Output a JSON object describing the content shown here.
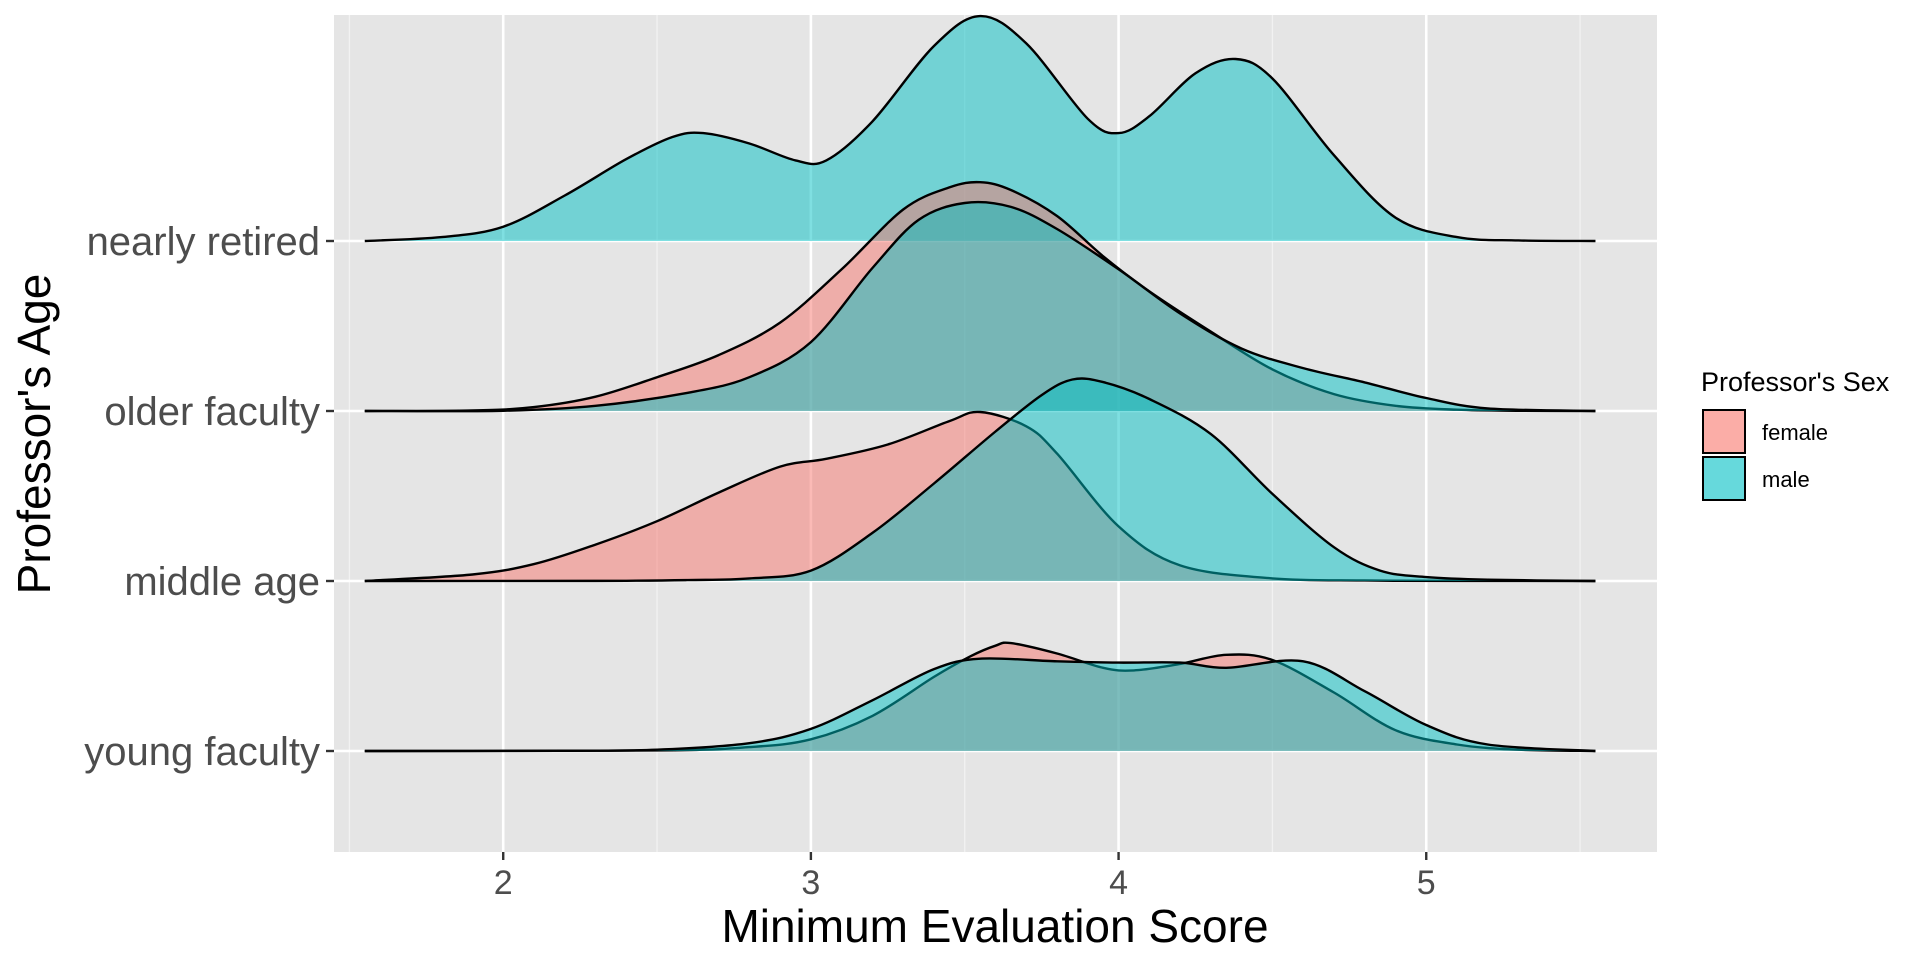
{
  "chart_data": {
    "type": "ridgeline",
    "xlabel": "Minimum Evaluation Score",
    "ylabel": "Professor's Age",
    "xlim": [
      1.45,
      5.75
    ],
    "x_ticks": [
      2,
      3,
      4,
      5
    ],
    "x_tick_labels": [
      "2",
      "3",
      "4",
      "5"
    ],
    "categories": [
      "young faculty",
      "middle age",
      "older faculty",
      "nearly retired"
    ],
    "density_x_range": [
      1.55,
      5.55
    ],
    "grid": true,
    "legend": {
      "title": "Professor's Sex",
      "position": "right",
      "entries": [
        {
          "label": "female",
          "color": "#F8766D"
        },
        {
          "label": "male",
          "color": "#00BFC4"
        }
      ]
    },
    "series": [
      {
        "group": "young faculty",
        "sex": "female",
        "color": "#F8766D",
        "x": [
          1.55,
          2.5,
          2.8,
          3.0,
          3.2,
          3.4,
          3.52,
          3.6,
          3.65,
          3.8,
          3.95,
          4.05,
          4.2,
          4.35,
          4.5,
          4.7,
          4.9,
          5.1,
          5.3,
          5.55
        ],
        "density": [
          0,
          0.004,
          0.03,
          0.09,
          0.27,
          0.57,
          0.73,
          0.81,
          0.83,
          0.75,
          0.64,
          0.62,
          0.67,
          0.74,
          0.7,
          0.45,
          0.16,
          0.05,
          0.01,
          0
        ]
      },
      {
        "group": "young faculty",
        "sex": "male",
        "color": "#00BFC4",
        "x": [
          1.55,
          2.2,
          2.5,
          2.8,
          3.0,
          3.2,
          3.4,
          3.55,
          3.8,
          4.0,
          4.2,
          4.35,
          4.6,
          4.8,
          5.0,
          5.2,
          5.55
        ],
        "density": [
          0,
          0.002,
          0.01,
          0.06,
          0.17,
          0.39,
          0.63,
          0.71,
          0.69,
          0.68,
          0.68,
          0.64,
          0.69,
          0.46,
          0.2,
          0.05,
          0
        ]
      },
      {
        "group": "middle age",
        "sex": "female",
        "color": "#F8766D",
        "x": [
          1.55,
          1.9,
          2.1,
          2.3,
          2.5,
          2.7,
          2.9,
          3.05,
          3.25,
          3.45,
          3.55,
          3.7,
          3.8,
          4.0,
          4.2,
          4.5,
          4.8,
          5.1,
          5.55
        ],
        "density": [
          0,
          0.05,
          0.13,
          0.28,
          0.46,
          0.68,
          0.88,
          0.94,
          1.05,
          1.23,
          1.3,
          1.19,
          0.98,
          0.42,
          0.12,
          0.02,
          0.004,
          0.001,
          0
        ]
      },
      {
        "group": "middle age",
        "sex": "male",
        "color": "#00BFC4",
        "x": [
          1.55,
          2.3,
          2.6,
          2.8,
          3.0,
          3.2,
          3.4,
          3.6,
          3.75,
          3.85,
          3.95,
          4.1,
          4.3,
          4.5,
          4.7,
          4.85,
          5.0,
          5.2,
          5.55
        ],
        "density": [
          0,
          0.001,
          0.007,
          0.02,
          0.08,
          0.37,
          0.75,
          1.15,
          1.43,
          1.55,
          1.53,
          1.4,
          1.13,
          0.67,
          0.26,
          0.08,
          0.03,
          0.01,
          0
        ]
      },
      {
        "group": "older faculty",
        "sex": "female",
        "color": "#F8766D",
        "x": [
          1.55,
          1.9,
          2.1,
          2.3,
          2.5,
          2.7,
          2.9,
          3.1,
          3.3,
          3.45,
          3.55,
          3.65,
          3.8,
          3.95,
          4.1,
          4.3,
          4.5,
          4.7,
          4.9,
          5.1,
          5.3,
          5.55
        ],
        "density": [
          0,
          0.004,
          0.03,
          0.11,
          0.26,
          0.43,
          0.68,
          1.09,
          1.55,
          1.72,
          1.76,
          1.7,
          1.5,
          1.19,
          0.92,
          0.61,
          0.32,
          0.13,
          0.04,
          0.01,
          0.002,
          0
        ]
      },
      {
        "group": "older faculty",
        "sex": "male",
        "color": "#00BFC4",
        "x": [
          1.55,
          2.0,
          2.3,
          2.6,
          2.8,
          3.0,
          3.2,
          3.35,
          3.5,
          3.65,
          3.8,
          4.0,
          4.2,
          4.4,
          4.6,
          4.8,
          5.0,
          5.2,
          5.55
        ],
        "density": [
          0,
          0.002,
          0.04,
          0.14,
          0.26,
          0.53,
          1.1,
          1.47,
          1.6,
          1.57,
          1.4,
          1.09,
          0.75,
          0.48,
          0.33,
          0.22,
          0.1,
          0.02,
          0
        ]
      },
      {
        "group": "nearly retired",
        "sex": "male",
        "color": "#00BFC4",
        "x": [
          1.55,
          1.8,
          2.0,
          2.2,
          2.4,
          2.55,
          2.65,
          2.8,
          2.95,
          3.05,
          3.2,
          3.4,
          3.55,
          3.7,
          3.9,
          4.0,
          4.1,
          4.25,
          4.38,
          4.5,
          4.7,
          4.9,
          5.1,
          5.3,
          5.55
        ],
        "density": [
          0,
          0.03,
          0.11,
          0.35,
          0.63,
          0.8,
          0.83,
          0.75,
          0.62,
          0.62,
          0.92,
          1.5,
          1.73,
          1.52,
          0.94,
          0.83,
          0.96,
          1.29,
          1.4,
          1.25,
          0.66,
          0.18,
          0.03,
          0.004,
          0
        ]
      }
    ]
  }
}
